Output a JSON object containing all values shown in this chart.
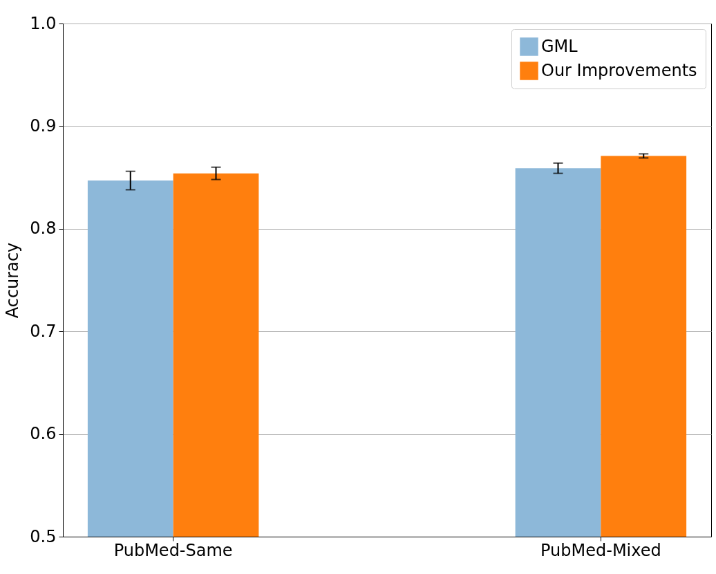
{
  "chart_data": {
    "type": "bar",
    "ylabel": "Accuracy",
    "categories": [
      "PubMed-Same",
      "PubMed-Mixed"
    ],
    "series": [
      {
        "name": "GML",
        "color": "#8db8d9",
        "values": [
          0.847,
          0.859
        ],
        "errors": [
          0.009,
          0.005
        ]
      },
      {
        "name": "Our Improvements",
        "color": "#ff7f0e",
        "values": [
          0.854,
          0.871
        ],
        "errors": [
          0.006,
          0.002
        ]
      }
    ],
    "ylim": [
      0.5,
      1.0
    ],
    "yticks": [
      0.5,
      0.6,
      0.7,
      0.8,
      0.9,
      {
        "value": 1,
        "label": "1.0"
      }
    ],
    "grid": "y",
    "legend": "top right"
  }
}
